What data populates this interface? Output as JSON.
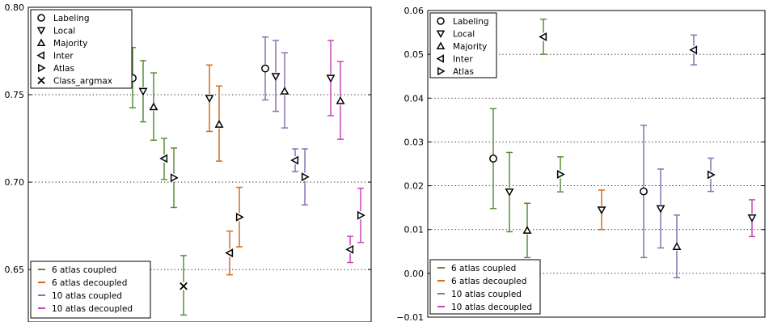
{
  "chart_data": [
    {
      "type": "errorbar",
      "ylim": [
        0.62,
        0.8
      ],
      "yticks": [
        "0.65",
        "0.70",
        "0.75",
        "0.80"
      ],
      "grid": "dotted horizontal",
      "legend_markers": [
        {
          "label": "Labeling",
          "marker": "circle"
        },
        {
          "label": "Local",
          "marker": "triangle-down"
        },
        {
          "label": "Majority",
          "marker": "triangle-up"
        },
        {
          "label": "Inter",
          "marker": "triangle-left"
        },
        {
          "label": "Atlas",
          "marker": "triangle-right"
        },
        {
          "label": "Class_argmax",
          "marker": "x"
        }
      ],
      "legend_series": [
        {
          "label": "6 atlas coupled",
          "color": "#5a8e3a"
        },
        {
          "label": " 6 atlas decoupled",
          "color": "#d66a1c"
        },
        {
          "label": "10 atlas coupled",
          "color": "#8a70b0"
        },
        {
          "label": " 10 atlas decoupled",
          "color": "#c646b8"
        }
      ],
      "points": [
        {
          "series": 0,
          "method": "Labeling",
          "marker": "circle",
          "y": 0.7595,
          "low": 0.7425,
          "high": 0.777
        },
        {
          "series": 0,
          "method": "Local",
          "marker": "triangle-down",
          "y": 0.752,
          "low": 0.7345,
          "high": 0.7695
        },
        {
          "series": 0,
          "method": "Majority",
          "marker": "triangle-up",
          "y": 0.743,
          "low": 0.724,
          "high": 0.7625
        },
        {
          "series": 0,
          "method": "Inter",
          "marker": "triangle-left",
          "y": 0.7135,
          "low": 0.7015,
          "high": 0.725
        },
        {
          "series": 0,
          "method": "Atlas",
          "marker": "triangle-right",
          "y": 0.7025,
          "low": 0.6855,
          "high": 0.7195
        },
        {
          "series": 0,
          "method": "Class_argmax",
          "marker": "x",
          "y": 0.6405,
          "low": 0.624,
          "high": 0.658
        },
        {
          "series": 1,
          "method": "Local",
          "marker": "triangle-down",
          "y": 0.748,
          "low": 0.729,
          "high": 0.767
        },
        {
          "series": 1,
          "method": "Majority",
          "marker": "triangle-up",
          "y": 0.733,
          "low": 0.712,
          "high": 0.755
        },
        {
          "series": 1,
          "method": "Inter",
          "marker": "triangle-left",
          "y": 0.6595,
          "low": 0.647,
          "high": 0.672
        },
        {
          "series": 1,
          "method": "Atlas",
          "marker": "triangle-right",
          "y": 0.68,
          "low": 0.663,
          "high": 0.697
        },
        {
          "series": 2,
          "method": "Labeling",
          "marker": "circle",
          "y": 0.765,
          "low": 0.747,
          "high": 0.783
        },
        {
          "series": 2,
          "method": "Local",
          "marker": "triangle-down",
          "y": 0.7605,
          "low": 0.7405,
          "high": 0.781
        },
        {
          "series": 2,
          "method": "Majority",
          "marker": "triangle-up",
          "y": 0.752,
          "low": 0.731,
          "high": 0.774
        },
        {
          "series": 2,
          "method": "Inter",
          "marker": "triangle-left",
          "y": 0.7125,
          "low": 0.706,
          "high": 0.719
        },
        {
          "series": 2,
          "method": "Atlas",
          "marker": "triangle-right",
          "y": 0.703,
          "low": 0.687,
          "high": 0.719
        },
        {
          "series": 3,
          "method": "Local",
          "marker": "triangle-down",
          "y": 0.7595,
          "low": 0.738,
          "high": 0.781
        },
        {
          "series": 3,
          "method": "Majority",
          "marker": "triangle-up",
          "y": 0.7465,
          "low": 0.7245,
          "high": 0.769
        },
        {
          "series": 3,
          "method": "Inter",
          "marker": "triangle-left",
          "y": 0.6615,
          "low": 0.654,
          "high": 0.669
        },
        {
          "series": 3,
          "method": "Atlas",
          "marker": "triangle-right",
          "y": 0.681,
          "low": 0.6655,
          "high": 0.6965
        }
      ]
    },
    {
      "type": "errorbar",
      "ylim": [
        -0.01,
        0.06
      ],
      "yticks": [
        "−0.01",
        "0.00",
        "0.01",
        "0.02",
        "0.03",
        "0.04",
        "0.05",
        "0.06"
      ],
      "grid": "dotted horizontal",
      "legend_markers": [
        {
          "label": "Labeling",
          "marker": "circle"
        },
        {
          "label": "Local",
          "marker": "triangle-down"
        },
        {
          "label": "Majority",
          "marker": "triangle-up"
        },
        {
          "label": "Inter",
          "marker": "triangle-left"
        },
        {
          "label": "Atlas",
          "marker": "triangle-right"
        }
      ],
      "legend_series": [
        {
          "label": "6 atlas coupled",
          "color": "#5a8e3a"
        },
        {
          "label": "6 atlas decoupled",
          "color": "#d66a1c"
        },
        {
          "label": "10 atlas coupled",
          "color": "#8a70b0"
        },
        {
          "label": "10 atlas decoupled",
          "color": "#c646b8"
        }
      ],
      "points": [
        {
          "series": 0,
          "method": "Labeling",
          "marker": "circle",
          "y": 0.0262,
          "low": 0.0148,
          "high": 0.0376
        },
        {
          "series": 0,
          "method": "Local",
          "marker": "triangle-down",
          "y": 0.0186,
          "low": 0.0095,
          "high": 0.0276
        },
        {
          "series": 0,
          "method": "Majority",
          "marker": "triangle-up",
          "y": 0.0098,
          "low": 0.0036,
          "high": 0.016
        },
        {
          "series": 0,
          "method": "Inter",
          "marker": "triangle-left",
          "y": 0.054,
          "low": 0.05,
          "high": 0.058
        },
        {
          "series": 0,
          "method": "Atlas",
          "marker": "triangle-right",
          "y": 0.0226,
          "low": 0.0186,
          "high": 0.0266
        },
        {
          "series": 1,
          "method": "Local",
          "marker": "triangle-down",
          "y": 0.0145,
          "low": 0.01,
          "high": 0.019
        },
        {
          "series": 2,
          "method": "Labeling",
          "marker": "circle",
          "y": 0.0187,
          "low": 0.0036,
          "high": 0.0338
        },
        {
          "series": 2,
          "method": "Local",
          "marker": "triangle-down",
          "y": 0.0148,
          "low": 0.0058,
          "high": 0.0238
        },
        {
          "series": 2,
          "method": "Majority",
          "marker": "triangle-up",
          "y": 0.0061,
          "low": -0.001,
          "high": 0.0133
        },
        {
          "series": 2,
          "method": "Inter",
          "marker": "triangle-left",
          "y": 0.051,
          "low": 0.0476,
          "high": 0.0544
        },
        {
          "series": 2,
          "method": "Atlas",
          "marker": "triangle-right",
          "y": 0.0225,
          "low": 0.0187,
          "high": 0.0263
        },
        {
          "series": 3,
          "method": "Local",
          "marker": "triangle-down",
          "y": 0.0127,
          "low": 0.0084,
          "high": 0.0168
        }
      ]
    }
  ]
}
